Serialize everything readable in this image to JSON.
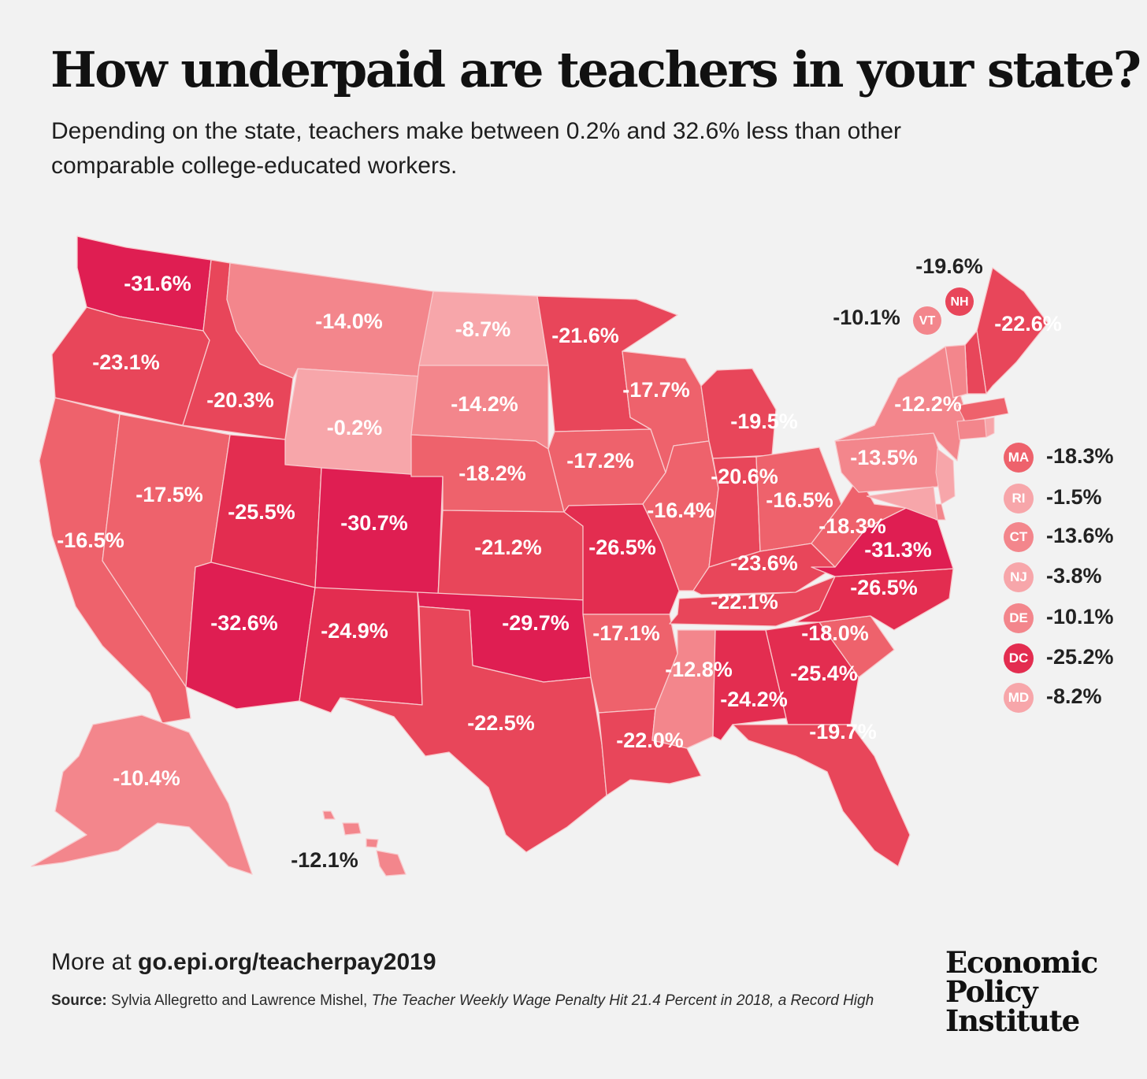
{
  "header": {
    "title": "How underpaid are teachers in your state?",
    "subtitle": "Depending on the state, teachers make between 0.2% and 32.6% less than other comparable college-educated workers."
  },
  "colors": {
    "scale": [
      "#f7a6aa",
      "#f3868c",
      "#ee626c",
      "#e8465a",
      "#e32d50",
      "#df1e52"
    ],
    "border": "#f8c9cc",
    "background": "#f2f2f2"
  },
  "map": {
    "states": [
      {
        "code": "WA",
        "value": -31.6
      },
      {
        "code": "OR",
        "value": -23.1
      },
      {
        "code": "CA",
        "value": -16.5
      },
      {
        "code": "ID",
        "value": -20.3
      },
      {
        "code": "NV",
        "value": -17.5
      },
      {
        "code": "MT",
        "value": -14.0
      },
      {
        "code": "WY",
        "value": -0.2
      },
      {
        "code": "UT",
        "value": -25.5
      },
      {
        "code": "AZ",
        "value": -32.6
      },
      {
        "code": "CO",
        "value": -30.7
      },
      {
        "code": "NM",
        "value": -24.9
      },
      {
        "code": "ND",
        "value": -8.7
      },
      {
        "code": "SD",
        "value": -14.2
      },
      {
        "code": "NE",
        "value": -18.2
      },
      {
        "code": "KS",
        "value": -21.2
      },
      {
        "code": "OK",
        "value": -29.7
      },
      {
        "code": "TX",
        "value": -22.5
      },
      {
        "code": "MN",
        "value": -21.6
      },
      {
        "code": "IA",
        "value": -17.2
      },
      {
        "code": "MO",
        "value": -26.5
      },
      {
        "code": "AR",
        "value": -17.1
      },
      {
        "code": "LA",
        "value": -22.0
      },
      {
        "code": "WI",
        "value": -17.7
      },
      {
        "code": "IL",
        "value": -16.4
      },
      {
        "code": "MI",
        "value": -19.5
      },
      {
        "code": "IN",
        "value": -20.6
      },
      {
        "code": "OH",
        "value": -16.5
      },
      {
        "code": "KY",
        "value": -23.6
      },
      {
        "code": "TN",
        "value": -22.1
      },
      {
        "code": "MS",
        "value": -12.8
      },
      {
        "code": "AL",
        "value": -24.2
      },
      {
        "code": "GA",
        "value": -25.4
      },
      {
        "code": "FL",
        "value": -19.7
      },
      {
        "code": "SC",
        "value": -18.0
      },
      {
        "code": "NC",
        "value": -26.5
      },
      {
        "code": "VA",
        "value": -31.3
      },
      {
        "code": "WV",
        "value": -18.3
      },
      {
        "code": "PA",
        "value": -13.5
      },
      {
        "code": "NY",
        "value": -12.2
      },
      {
        "code": "ME",
        "value": -22.6
      },
      {
        "code": "NH",
        "value": -19.6
      },
      {
        "code": "VT",
        "value": -10.1
      },
      {
        "code": "AK",
        "value": -10.4
      },
      {
        "code": "HI",
        "value": -12.1
      }
    ],
    "labels": {
      "WA": "-31.6%",
      "OR": "-23.1%",
      "CA": "-16.5%",
      "ID": "-20.3%",
      "NV": "-17.5%",
      "MT": "-14.0%",
      "WY": "-0.2%",
      "UT": "-25.5%",
      "AZ": "-32.6%",
      "CO": "-30.7%",
      "NM": "-24.9%",
      "ND": "-8.7%",
      "SD": "-14.2%",
      "NE": "-18.2%",
      "KS": "-21.2%",
      "OK": "-29.7%",
      "TX": "-22.5%",
      "MN": "-21.6%",
      "IA": "-17.2%",
      "MO": "-26.5%",
      "AR": "-17.1%",
      "LA": "-22.0%",
      "WI": "-17.7%",
      "IL": "-16.4%",
      "MI": "-19.5%",
      "IN": "-20.6%",
      "OH": "-16.5%",
      "KY": "-23.6%",
      "TN": "-22.1%",
      "MS": "-12.8%",
      "AL": "-24.2%",
      "GA": "-25.4%",
      "FL": "-19.7%",
      "SC": "-18.0%",
      "NC": "-26.5%",
      "VA": "-31.3%",
      "WV": "-18.3%",
      "PA": "-13.5%",
      "NY": "-12.2%",
      "ME": "-22.6%",
      "NH": "-19.6%",
      "VT": "-10.1%",
      "AK": "-10.4%",
      "HI": "-12.1%"
    },
    "badges": {
      "NH": "NH",
      "VT": "VT"
    }
  },
  "legend": {
    "items": [
      {
        "code": "MA",
        "label": "-18.3%",
        "value": -18.3
      },
      {
        "code": "RI",
        "label": "-1.5%",
        "value": -1.5
      },
      {
        "code": "CT",
        "label": "-13.6%",
        "value": -13.6
      },
      {
        "code": "NJ",
        "label": "-3.8%",
        "value": -3.8
      },
      {
        "code": "DE",
        "label": "-10.1%",
        "value": -10.1
      },
      {
        "code": "DC",
        "label": "-25.2%",
        "value": -25.2
      },
      {
        "code": "MD",
        "label": "-8.2%",
        "value": -8.2
      }
    ]
  },
  "footer": {
    "more_prefix": "More at ",
    "more_link": "go.epi.org/teacherpay2019",
    "source_label": "Source:",
    "source_authors": " Sylvia Allegretto and Lawrence Mishel, ",
    "source_title": "The Teacher Weekly Wage Penalty Hit 21.4 Percent in 2018, a Record High",
    "logo_lines": [
      "Economic",
      "Policy",
      "Institute"
    ]
  }
}
